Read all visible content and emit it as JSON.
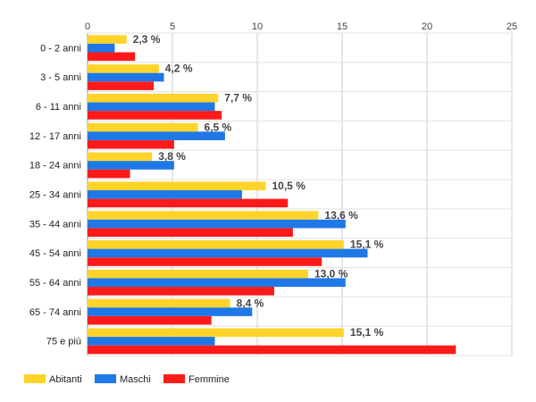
{
  "chart_data": {
    "type": "bar",
    "orientation": "horizontal",
    "categories": [
      "0 - 2 anni",
      "3 - 5 anni",
      "6 - 11 anni",
      "12 - 17 anni",
      "18 - 24 anni",
      "25 - 34 anni",
      "35 - 44 anni",
      "45 - 54 anni",
      "55 - 64 anni",
      "65 - 74 anni",
      "75 e più"
    ],
    "series": [
      {
        "name": "Abitanti",
        "color": "#ffd42a",
        "values": [
          2.3,
          4.2,
          7.7,
          6.5,
          3.8,
          10.5,
          13.6,
          15.1,
          13.0,
          8.4,
          15.1
        ],
        "data_labels": [
          "2,3 %",
          "4,2 %",
          "7,7 %",
          "6,5 %",
          "3,8 %",
          "10,5 %",
          "13,6 %",
          "15,1 %",
          "13,0 %",
          "8,4 %",
          "15,1 %"
        ]
      },
      {
        "name": "Maschi",
        "color": "#1f78e8",
        "values": [
          1.6,
          4.5,
          7.5,
          8.1,
          5.1,
          9.1,
          15.2,
          16.5,
          15.2,
          9.7,
          7.5
        ]
      },
      {
        "name": "Femmine",
        "color": "#ff1a1a",
        "values": [
          2.8,
          3.9,
          7.9,
          5.1,
          2.5,
          11.8,
          12.1,
          13.8,
          11.0,
          7.3,
          21.7
        ]
      }
    ],
    "xlim": [
      0,
      25
    ],
    "x_ticks": [
      0,
      5,
      10,
      15,
      20,
      25
    ],
    "grid": true,
    "legend_position": "bottom-left"
  }
}
